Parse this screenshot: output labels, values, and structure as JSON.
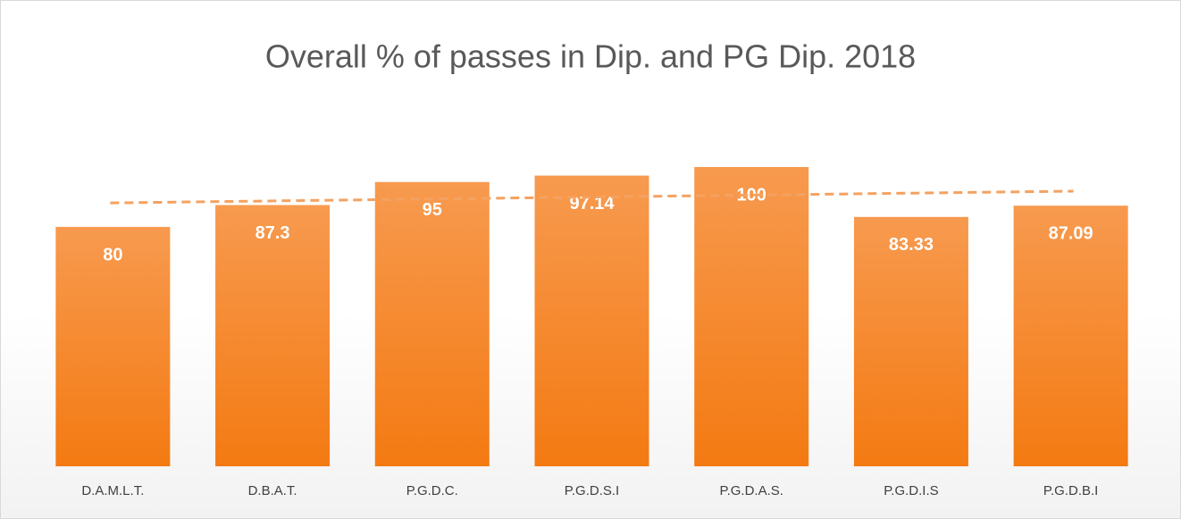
{
  "chart_data": {
    "type": "bar",
    "title": "Overall % of passes in Dip. and PG Dip. 2018",
    "categories": [
      "D.A.M.L.T.",
      "D.B.A.T.",
      "P.G.D.C.",
      "P.G.D.S.I",
      "P.G.D.A.S.",
      "P.G.D.I.S",
      "P.G.D.B.I"
    ],
    "values": [
      80,
      87.3,
      95,
      97.14,
      100,
      83.33,
      87.09
    ],
    "color": "#f58a2e",
    "trendline": true,
    "grid": false
  }
}
